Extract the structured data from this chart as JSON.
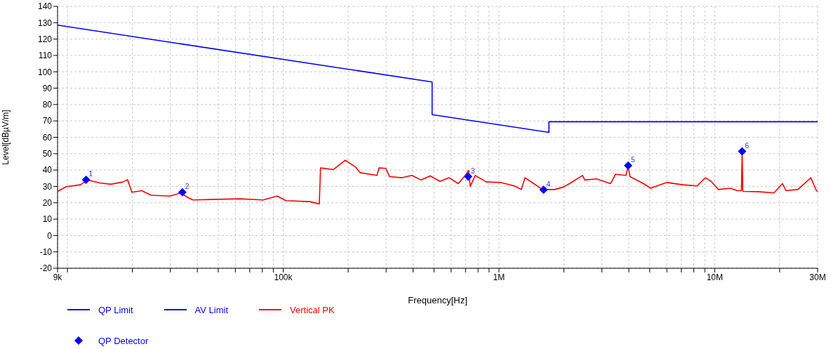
{
  "chart_data": {
    "type": "line",
    "xlabel": "Frequency[Hz]",
    "ylabel": "Level[dBµV/m]",
    "log": "x",
    "grid": true,
    "legend": "bottom",
    "xlim": [
      9000,
      30000000
    ],
    "xticks": [
      {
        "value": 9000,
        "label": "9k"
      },
      {
        "value": 10000,
        "label": null
      },
      {
        "value": 20000,
        "label": null
      },
      {
        "value": 30000,
        "label": null
      },
      {
        "value": 40000,
        "label": null
      },
      {
        "value": 50000,
        "label": null
      },
      {
        "value": 60000,
        "label": null
      },
      {
        "value": 70000,
        "label": null
      },
      {
        "value": 80000,
        "label": null
      },
      {
        "value": 90000,
        "label": null
      },
      {
        "value": 100000,
        "label": "100k"
      },
      {
        "value": 200000,
        "label": null
      },
      {
        "value": 300000,
        "label": null
      },
      {
        "value": 400000,
        "label": null
      },
      {
        "value": 500000,
        "label": null
      },
      {
        "value": 600000,
        "label": null
      },
      {
        "value": 700000,
        "label": null
      },
      {
        "value": 800000,
        "label": null
      },
      {
        "value": 900000,
        "label": null
      },
      {
        "value": 1000000,
        "label": "1M"
      },
      {
        "value": 2000000,
        "label": null
      },
      {
        "value": 3000000,
        "label": null
      },
      {
        "value": 4000000,
        "label": null
      },
      {
        "value": 5000000,
        "label": null
      },
      {
        "value": 6000000,
        "label": null
      },
      {
        "value": 7000000,
        "label": null
      },
      {
        "value": 8000000,
        "label": null
      },
      {
        "value": 9000000,
        "label": null
      },
      {
        "value": 10000000,
        "label": "10M"
      },
      {
        "value": 20000000,
        "label": null
      },
      {
        "value": 30000000,
        "label": "30M"
      }
    ],
    "ylim": [
      -20,
      140
    ],
    "yticks": [
      -20,
      -10,
      0,
      10,
      20,
      30,
      40,
      50,
      60,
      70,
      80,
      90,
      100,
      110,
      120,
      130,
      140
    ],
    "series": [
      {
        "name": "QP Limit",
        "color": "#0000ff",
        "marker": "none",
        "x": [
          9000,
          490000,
          490000,
          1705000,
          1705000,
          30000000
        ],
        "values": [
          128.5,
          93.8,
          73.8,
          63,
          69.5,
          69.5
        ]
      },
      {
        "name": "AV Limit",
        "color": "#0000ff",
        "marker": "none"
      },
      {
        "name": "Vertical PK",
        "color": "#ff0000",
        "marker": "none",
        "x": [
          9000,
          9900,
          11500,
          12400,
          14100,
          15900,
          18100,
          19000,
          19900,
          22100,
          24400,
          29800,
          33600,
          36200,
          38200,
          48900,
          63100,
          80700,
          93800,
          103000,
          133000,
          147000,
          149000,
          171000,
          194000,
          217000,
          227000,
          272000,
          278000,
          299000,
          311000,
          356000,
          395000,
          436000,
          480000,
          533000,
          588000,
          648000,
          698000,
          724000,
          736000,
          776000,
          875000,
          1016000,
          1180000,
          1270000,
          1320000,
          1450000,
          1590000,
          1810000,
          1990000,
          2150000,
          2440000,
          2500000,
          2830000,
          3290000,
          3470000,
          3880000,
          3970000,
          4050000,
          4680000,
          5050000,
          6000000,
          7110000,
          8280000,
          9060000,
          9620000,
          10400000,
          11800000,
          12700000,
          13300000,
          13400000,
          13500000,
          16200000,
          18800000,
          20600000,
          21400000,
          24300000,
          27900000,
          29600000,
          30000000
        ],
        "values": [
          27,
          29.9,
          31,
          33.9,
          32.1,
          31.3,
          32.7,
          34.1,
          26.4,
          27.4,
          24.6,
          24.1,
          26,
          23.1,
          21.7,
          22.1,
          22.4,
          21.7,
          24.1,
          21.3,
          20.7,
          19.3,
          41.3,
          40.3,
          46,
          41.7,
          38.4,
          36.7,
          41.3,
          41,
          36,
          35.3,
          36.7,
          33.9,
          36.4,
          33.1,
          35.3,
          31.7,
          36.7,
          39.9,
          29.9,
          36.7,
          32.7,
          32.4,
          30.3,
          28.1,
          35.3,
          31.7,
          28.1,
          28.1,
          29.6,
          32.1,
          36.7,
          33.9,
          34.6,
          31.7,
          37.4,
          36.7,
          42.4,
          36,
          31.7,
          28.9,
          32.4,
          31,
          30.3,
          35.3,
          33.1,
          28.1,
          28.9,
          27.4,
          27.4,
          50.3,
          27,
          26.7,
          26,
          31.7,
          27.4,
          28.1,
          35.3,
          27.4,
          27
        ]
      },
      {
        "name": "QP Detector",
        "type": "scatter",
        "color": "#0000ff",
        "marker": "diamond",
        "x": [
          12200,
          34100,
          720000,
          1610000,
          3970000,
          13400000
        ],
        "values": [
          34.1,
          26.4,
          36,
          27.9,
          42.7,
          51.4
        ]
      }
    ],
    "annotations": [
      {
        "text": "1",
        "x": 12200,
        "y": 34.1
      },
      {
        "text": "2",
        "x": 34100,
        "y": 26.4
      },
      {
        "text": "3",
        "x": 720000,
        "y": 36
      },
      {
        "text": "4",
        "x": 1610000,
        "y": 27.9
      },
      {
        "text": "5",
        "x": 3970000,
        "y": 42.7
      },
      {
        "text": "6",
        "x": 13400000,
        "y": 51.4
      }
    ]
  }
}
